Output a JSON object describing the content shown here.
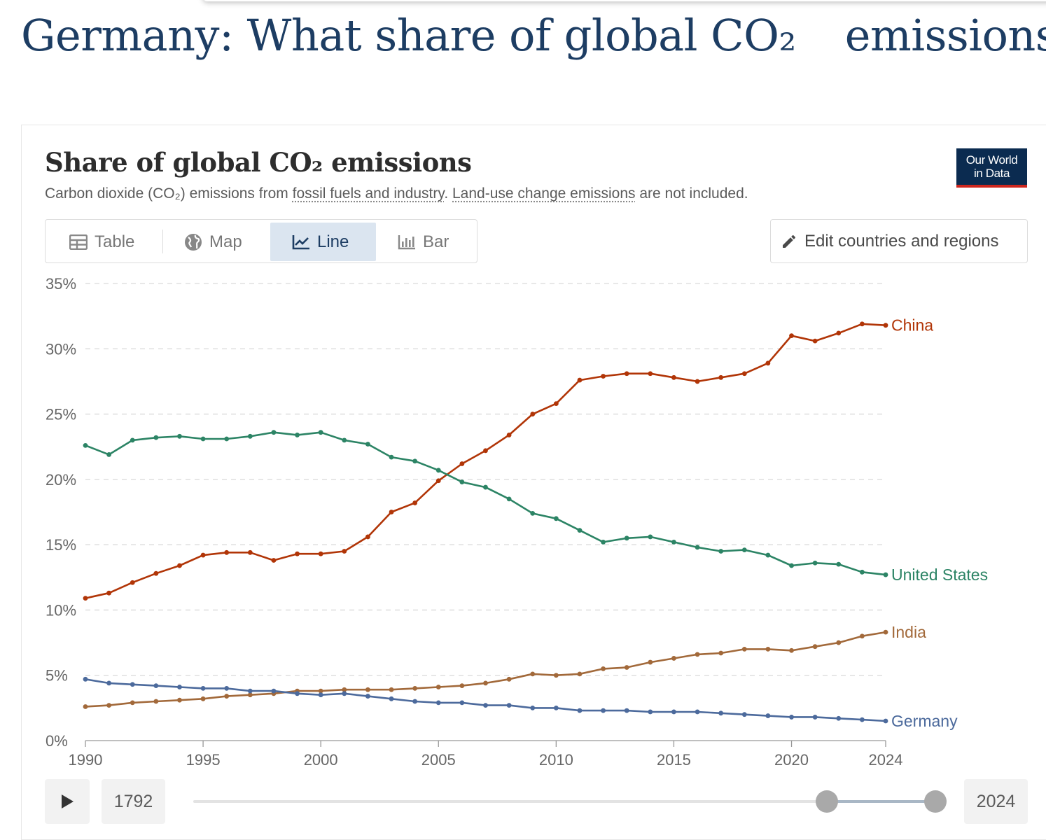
{
  "page": {
    "title_part1": "Germany: What share of global CO₂",
    "title_part2": "emissions"
  },
  "chart_header": {
    "title": "Share of global CO₂ emissions",
    "subtitle_pre": "Carbon dioxide (CO₂) emissions from ",
    "subtitle_link1": "fossil fuels and industry",
    "subtitle_mid": ". ",
    "subtitle_link2": "Land-use change emissions",
    "subtitle_post": " are not included.",
    "logo_line1": "Our World",
    "logo_line2": "in Data"
  },
  "tabs": [
    {
      "label": "Table",
      "icon": "table-icon"
    },
    {
      "label": "Map",
      "icon": "globe-icon"
    },
    {
      "label": "Line",
      "icon": "line-chart-icon",
      "active": true
    },
    {
      "label": "Bar",
      "icon": "bar-chart-icon"
    }
  ],
  "edit_button": {
    "label": "Edit countries and regions",
    "icon": "pencil-icon"
  },
  "timeline": {
    "start_year": "1792",
    "end_year": "2024"
  },
  "chart_data": {
    "type": "line",
    "title": "Share of global CO₂ emissions",
    "xlabel": "",
    "ylabel": "",
    "xlim": [
      1990,
      2024
    ],
    "ylim": [
      0,
      35
    ],
    "grid": true,
    "y_ticks": [
      0,
      5,
      10,
      15,
      20,
      25,
      30,
      35
    ],
    "y_tick_labels": [
      "0%",
      "5%",
      "10%",
      "15%",
      "20%",
      "25%",
      "30%",
      "35%"
    ],
    "x_ticks": [
      1990,
      1995,
      2000,
      2005,
      2010,
      2015,
      2020,
      2024
    ],
    "x_tick_labels": [
      "1990",
      "1995",
      "2000",
      "2005",
      "2010",
      "2015",
      "2020",
      "2024"
    ],
    "x": [
      1990,
      1991,
      1992,
      1993,
      1994,
      1995,
      1996,
      1997,
      1998,
      1999,
      2000,
      2001,
      2002,
      2003,
      2004,
      2005,
      2006,
      2007,
      2008,
      2009,
      2010,
      2011,
      2012,
      2013,
      2014,
      2015,
      2016,
      2017,
      2018,
      2019,
      2020,
      2021,
      2022,
      2023,
      2024
    ],
    "series": [
      {
        "name": "China",
        "color": "#b13507",
        "values": [
          10.9,
          11.3,
          12.1,
          12.8,
          13.4,
          14.2,
          14.4,
          14.4,
          13.8,
          14.3,
          14.3,
          14.5,
          15.6,
          17.5,
          18.2,
          19.9,
          21.2,
          22.2,
          23.4,
          25.0,
          25.8,
          27.6,
          27.9,
          28.1,
          28.1,
          27.8,
          27.5,
          27.8,
          28.1,
          28.9,
          31.0,
          30.6,
          31.2,
          31.9,
          31.8
        ]
      },
      {
        "name": "United States",
        "color": "#2c8465",
        "values": [
          22.6,
          21.9,
          23.0,
          23.2,
          23.3,
          23.1,
          23.1,
          23.3,
          23.6,
          23.4,
          23.6,
          23.0,
          22.7,
          21.7,
          21.4,
          20.7,
          19.8,
          19.4,
          18.5,
          17.4,
          17.0,
          16.1,
          15.2,
          15.5,
          15.6,
          15.2,
          14.8,
          14.5,
          14.6,
          14.2,
          13.4,
          13.6,
          13.5,
          12.9,
          12.7
        ]
      },
      {
        "name": "India",
        "color": "#a2693a",
        "values": [
          2.6,
          2.7,
          2.9,
          3.0,
          3.1,
          3.2,
          3.4,
          3.5,
          3.6,
          3.8,
          3.8,
          3.9,
          3.9,
          3.9,
          4.0,
          4.1,
          4.2,
          4.4,
          4.7,
          5.1,
          5.0,
          5.1,
          5.5,
          5.6,
          6.0,
          6.3,
          6.6,
          6.7,
          7.0,
          7.0,
          6.9,
          7.2,
          7.5,
          8.0,
          8.3
        ]
      },
      {
        "name": "Germany",
        "color": "#4c6a9c",
        "values": [
          4.7,
          4.4,
          4.3,
          4.2,
          4.1,
          4.0,
          4.0,
          3.8,
          3.8,
          3.6,
          3.5,
          3.6,
          3.4,
          3.2,
          3.0,
          2.9,
          2.9,
          2.7,
          2.7,
          2.5,
          2.5,
          2.3,
          2.3,
          2.3,
          2.2,
          2.2,
          2.2,
          2.1,
          2.0,
          1.9,
          1.8,
          1.8,
          1.7,
          1.6,
          1.5
        ]
      }
    ]
  }
}
